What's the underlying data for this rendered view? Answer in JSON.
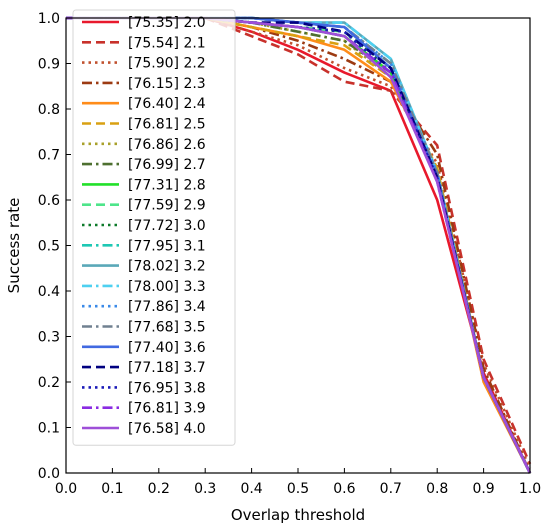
{
  "chart_data": {
    "type": "line",
    "title": "",
    "xlabel": "Overlap threshold",
    "ylabel": "Success rate",
    "xlim": [
      0.0,
      1.0
    ],
    "ylim": [
      0.0,
      1.0
    ],
    "xticks": [
      "0.0",
      "0.1",
      "0.2",
      "0.3",
      "0.4",
      "0.5",
      "0.6",
      "0.7",
      "0.8",
      "0.9",
      "1.0"
    ],
    "yticks": [
      "0.0",
      "0.1",
      "0.2",
      "0.3",
      "0.4",
      "0.5",
      "0.6",
      "0.7",
      "0.8",
      "0.9",
      "1.0"
    ],
    "grid": false,
    "legend_position": "upper-left",
    "x": [
      0.0,
      0.1,
      0.2,
      0.3,
      0.4,
      0.5,
      0.6,
      0.7,
      0.8,
      0.9,
      1.0
    ],
    "series": [
      {
        "name": "[75.35] 2.0",
        "color": "#e8192c",
        "dash": "solid",
        "values": [
          1.0,
          1.0,
          1.0,
          1.0,
          0.97,
          0.93,
          0.88,
          0.84,
          0.6,
          0.22,
          0.0
        ]
      },
      {
        "name": "[75.54] 2.1",
        "color": "#c8312b",
        "dash": "dashed",
        "values": [
          1.0,
          1.0,
          1.0,
          1.0,
          0.96,
          0.92,
          0.86,
          0.84,
          0.72,
          0.25,
          0.02
        ]
      },
      {
        "name": "[75.90] 2.2",
        "color": "#c0502e",
        "dash": "dotted",
        "values": [
          1.0,
          1.0,
          1.0,
          1.0,
          0.97,
          0.94,
          0.89,
          0.85,
          0.68,
          0.24,
          0.01
        ]
      },
      {
        "name": "[76.15] 2.3",
        "color": "#9c3a12",
        "dash": "dashdot",
        "values": [
          1.0,
          1.0,
          1.0,
          1.0,
          0.98,
          0.95,
          0.91,
          0.86,
          0.7,
          0.23,
          0.0
        ]
      },
      {
        "name": "[76.40] 2.4",
        "color": "#ff8c1a",
        "dash": "solid",
        "values": [
          1.0,
          1.0,
          1.0,
          1.0,
          0.98,
          0.96,
          0.93,
          0.86,
          0.66,
          0.2,
          0.0
        ]
      },
      {
        "name": "[76.81] 2.5",
        "color": "#d9a012",
        "dash": "dashed",
        "values": [
          1.0,
          1.0,
          1.0,
          1.0,
          0.98,
          0.96,
          0.94,
          0.87,
          0.67,
          0.21,
          0.0
        ]
      },
      {
        "name": "[76.86] 2.6",
        "color": "#a8a02a",
        "dash": "dotted",
        "values": [
          1.0,
          1.0,
          1.0,
          1.0,
          0.99,
          0.97,
          0.95,
          0.87,
          0.66,
          0.21,
          0.0
        ]
      },
      {
        "name": "[76.99] 2.7",
        "color": "#4e7030",
        "dash": "dashdot",
        "values": [
          1.0,
          1.0,
          1.0,
          1.0,
          0.99,
          0.97,
          0.95,
          0.88,
          0.66,
          0.21,
          0.0
        ]
      },
      {
        "name": "[77.31] 2.8",
        "color": "#22e02a",
        "dash": "solid",
        "values": [
          1.0,
          1.0,
          1.0,
          1.0,
          0.99,
          0.98,
          0.96,
          0.88,
          0.66,
          0.21,
          0.0
        ]
      },
      {
        "name": "[77.59] 2.9",
        "color": "#4ee58a",
        "dash": "dashed",
        "values": [
          1.0,
          1.0,
          1.0,
          1.0,
          0.99,
          0.98,
          0.97,
          0.89,
          0.66,
          0.21,
          0.0
        ]
      },
      {
        "name": "[77.72] 3.0",
        "color": "#0d7a2a",
        "dash": "dotted",
        "values": [
          1.0,
          1.0,
          1.0,
          1.0,
          0.99,
          0.98,
          0.97,
          0.89,
          0.66,
          0.21,
          0.0
        ]
      },
      {
        "name": "[77.95] 3.1",
        "color": "#1ec8b4",
        "dash": "dashdot",
        "values": [
          1.0,
          1.0,
          1.0,
          1.0,
          1.0,
          0.99,
          0.98,
          0.9,
          0.66,
          0.21,
          0.0
        ]
      },
      {
        "name": "[78.02] 3.2",
        "color": "#5aa8b8",
        "dash": "solid",
        "values": [
          1.0,
          1.0,
          1.0,
          1.0,
          1.0,
          0.99,
          0.99,
          0.91,
          0.66,
          0.21,
          0.0
        ]
      },
      {
        "name": "[78.00] 3.3",
        "color": "#4ed0f0",
        "dash": "dashdot",
        "values": [
          1.0,
          1.0,
          1.0,
          1.0,
          1.0,
          0.99,
          0.99,
          0.91,
          0.66,
          0.21,
          0.0
        ]
      },
      {
        "name": "[77.86] 3.4",
        "color": "#3a8ae8",
        "dash": "dotted",
        "values": [
          1.0,
          1.0,
          1.0,
          1.0,
          1.0,
          0.99,
          0.98,
          0.9,
          0.66,
          0.21,
          0.0
        ]
      },
      {
        "name": "[77.68] 3.5",
        "color": "#708090",
        "dash": "dashdot",
        "values": [
          1.0,
          1.0,
          1.0,
          1.0,
          1.0,
          0.99,
          0.98,
          0.9,
          0.66,
          0.21,
          0.0
        ]
      },
      {
        "name": "[77.40] 3.6",
        "color": "#4169e1",
        "dash": "solid",
        "values": [
          1.0,
          1.0,
          1.0,
          1.0,
          1.0,
          0.99,
          0.98,
          0.89,
          0.65,
          0.21,
          0.0
        ]
      },
      {
        "name": "[77.18] 3.7",
        "color": "#000080",
        "dash": "dashed",
        "values": [
          1.0,
          1.0,
          1.0,
          1.0,
          0.99,
          0.99,
          0.97,
          0.89,
          0.65,
          0.21,
          0.0
        ]
      },
      {
        "name": "[76.95] 3.8",
        "color": "#1a1ab8",
        "dash": "dotted",
        "values": [
          1.0,
          1.0,
          1.0,
          1.0,
          0.99,
          0.98,
          0.97,
          0.88,
          0.65,
          0.21,
          0.0
        ]
      },
      {
        "name": "[76.81] 3.9",
        "color": "#8a2be2",
        "dash": "dashdot",
        "values": [
          1.0,
          1.0,
          1.0,
          1.0,
          0.99,
          0.98,
          0.96,
          0.88,
          0.64,
          0.21,
          0.0
        ]
      },
      {
        "name": "[76.58] 4.0",
        "color": "#9e4fd8",
        "dash": "solid",
        "values": [
          1.0,
          1.0,
          1.0,
          1.0,
          0.99,
          0.98,
          0.96,
          0.87,
          0.64,
          0.21,
          0.0
        ]
      }
    ]
  }
}
